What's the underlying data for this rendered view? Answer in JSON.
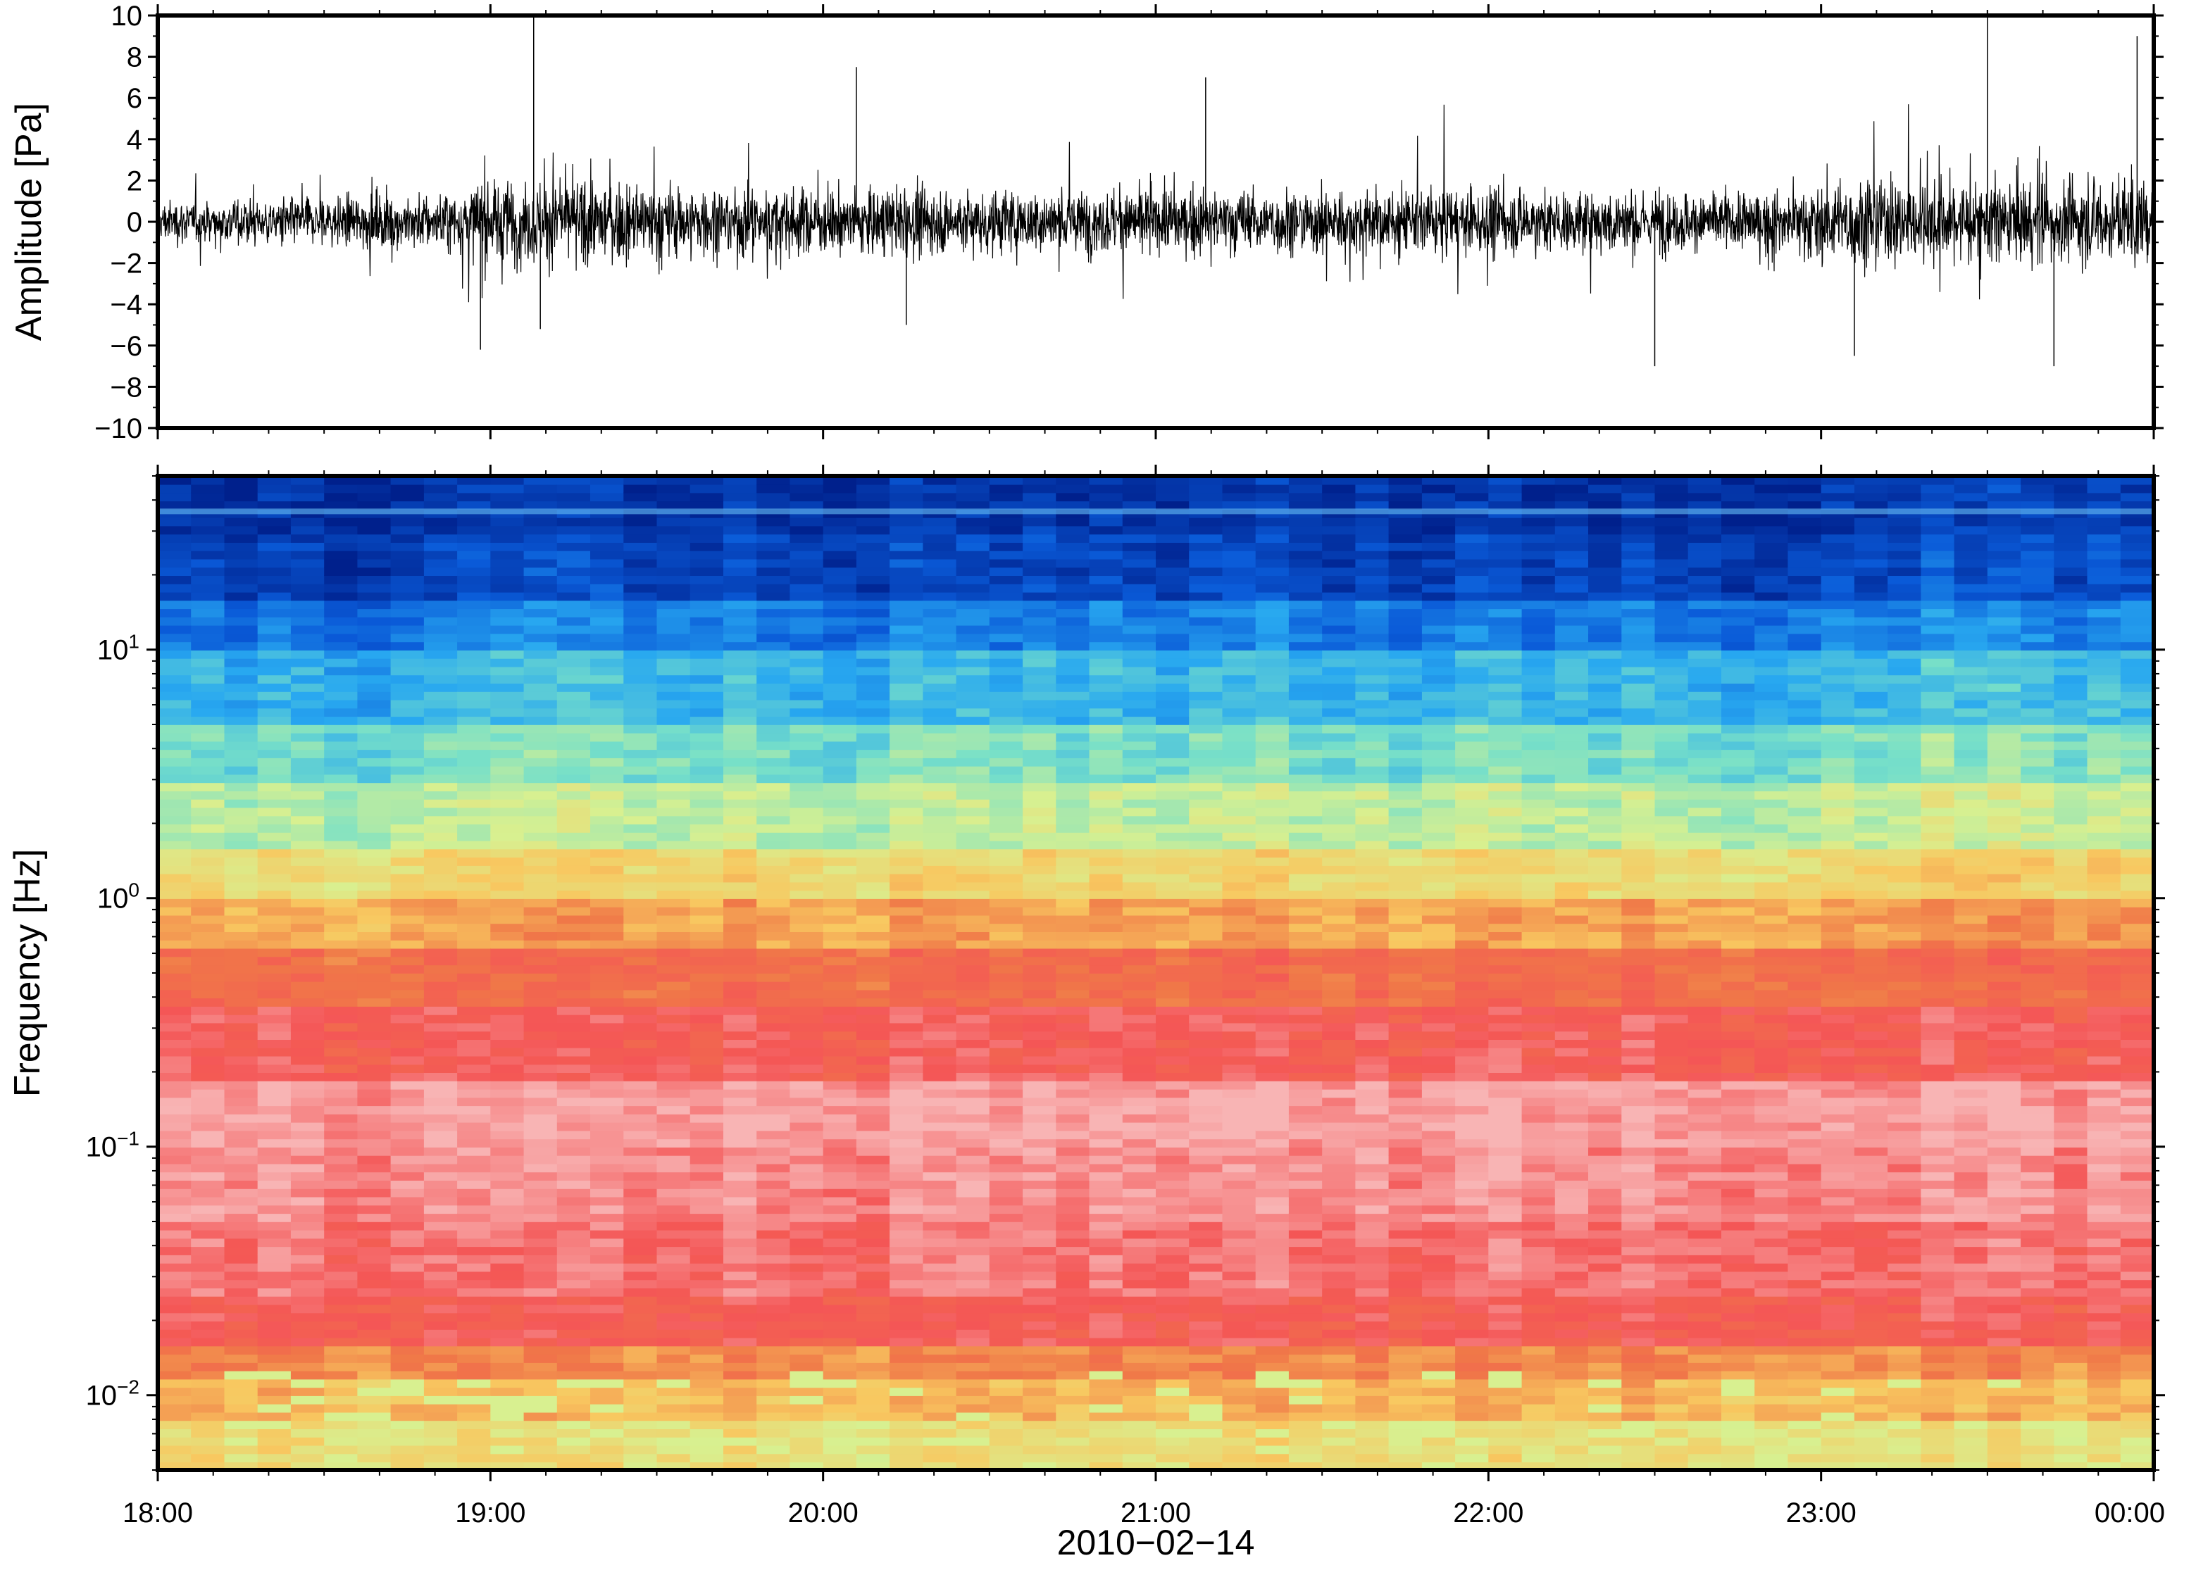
{
  "chart_data": [
    {
      "type": "line",
      "panel": "waveform",
      "ylabel": "Amplitude [Pa]",
      "ylim": [
        -10,
        10
      ],
      "yticks": [
        10,
        8,
        6,
        4,
        2,
        0,
        -2,
        -4,
        -6,
        -8,
        -10
      ],
      "ytick_labels": [
        "10",
        "8",
        "6",
        "4",
        "2",
        "0",
        "−2",
        "−4",
        "−6",
        "−8",
        "−10"
      ],
      "xlim": [
        "18:00",
        "00:00"
      ],
      "envelope": {
        "description_hours": [
          18.0,
          18.5,
          18.9,
          19.0,
          19.3,
          19.6,
          20.0,
          20.5,
          21.0,
          21.5,
          22.0,
          22.5,
          22.9,
          23.0,
          23.3,
          23.6,
          24.0
        ],
        "typical_abs_amplitude_pa": [
          1.5,
          1.8,
          2.2,
          3.2,
          3.0,
          2.6,
          2.4,
          2.4,
          2.3,
          2.4,
          2.3,
          2.2,
          2.1,
          3.0,
          3.2,
          3.0,
          3.0
        ]
      },
      "peaks": [
        {
          "time_h": 19.13,
          "value": 10
        },
        {
          "time_h": 18.97,
          "value": -6.2
        },
        {
          "time_h": 19.15,
          "value": -5.2
        },
        {
          "time_h": 20.1,
          "value": 7.5
        },
        {
          "time_h": 20.25,
          "value": -5
        },
        {
          "time_h": 21.15,
          "value": 7
        },
        {
          "time_h": 22.5,
          "value": -7
        },
        {
          "time_h": 23.5,
          "value": 10
        },
        {
          "time_h": 23.1,
          "value": -6.5
        },
        {
          "time_h": 23.7,
          "value": -7
        },
        {
          "time_h": 23.95,
          "value": 9
        }
      ]
    },
    {
      "type": "heatmap",
      "panel": "spectrogram",
      "ylabel": "Frequency [Hz]",
      "yscale": "log",
      "ylim": [
        0.005,
        50
      ],
      "yticks": [
        {
          "base": "10",
          "exp": "1",
          "value": 10
        },
        {
          "base": "10",
          "exp": "0",
          "value": 1
        },
        {
          "base": "10",
          "exp": "−1",
          "value": 0.1
        },
        {
          "base": "10",
          "exp": "−2",
          "value": 0.01
        }
      ],
      "xlim": [
        "18:00",
        "00:00"
      ],
      "colormap": [
        "#00208c",
        "#0a5ad8",
        "#28a8f0",
        "#78e0c8",
        "#d8f090",
        "#f8c860",
        "#f07848",
        "#f45656",
        "#f8b4b4"
      ],
      "description": "High frequencies (>10 Hz) dark blue, ~3 Hz cyan/green, ~1 Hz yellow/orange, 0.05–0.5 Hz red/pink, lowest frequencies (~0.006 Hz) yellow/green",
      "blocks_per_hour": 10
    }
  ],
  "x_axis": {
    "tick_labels": [
      "18:00",
      "19:00",
      "20:00",
      "21:00",
      "22:00",
      "23:00",
      "00:00"
    ],
    "date_label": "2010−02−14"
  }
}
